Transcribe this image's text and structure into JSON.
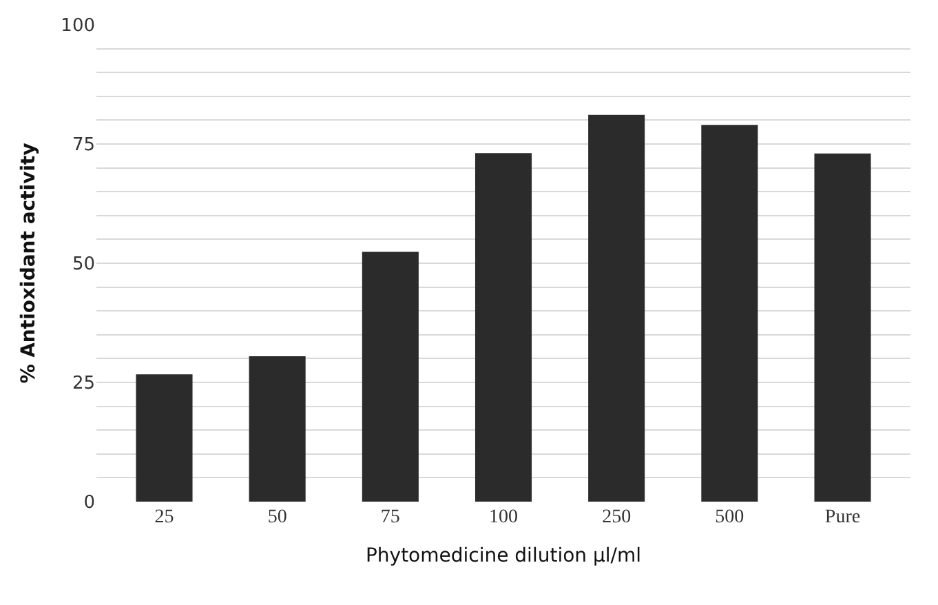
{
  "chart_data": {
    "type": "bar",
    "xlabel": "Phytomedicine dilution µl/ml",
    "ylabel": "% Antioxidant activity",
    "categories": [
      "25",
      "50",
      "75",
      "100",
      "250",
      "500",
      "Pure"
    ],
    "values": [
      26.7,
      30.5,
      52.4,
      73.1,
      81.1,
      79,
      73
    ],
    "color": "#2b2b2b",
    "ylim": [
      0,
      100
    ],
    "yticks": [
      0,
      {
        "value": 5,
        "label": null
      },
      {
        "value": 10,
        "label": null
      },
      {
        "value": 15,
        "label": null
      },
      {
        "value": 20,
        "label": null
      },
      25,
      {
        "value": 30,
        "label": null
      },
      {
        "value": 35,
        "label": null
      },
      {
        "value": 40,
        "label": null
      },
      {
        "value": 45,
        "label": null
      },
      50,
      {
        "value": 55,
        "label": null
      },
      {
        "value": 60,
        "label": null
      },
      {
        "value": 65,
        "label": null
      },
      {
        "value": 70,
        "label": null
      },
      75,
      {
        "value": 80,
        "label": null
      },
      {
        "value": 85,
        "label": null
      },
      {
        "value": 90,
        "label": null
      },
      {
        "value": 95,
        "label": null
      },
      100
    ],
    "grid": "y"
  }
}
